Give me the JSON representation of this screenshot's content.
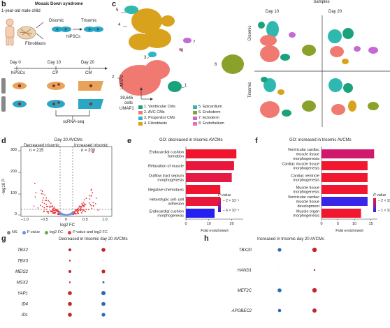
{
  "panels": {
    "b": "b",
    "c": "c",
    "d": "d",
    "e": "e",
    "f": "f",
    "g": "g",
    "h": "h"
  },
  "b": {
    "title": "Mosaic Down syndrome",
    "subject": "1-year-old male child",
    "fibroblasts": "Fibroblasts",
    "disomic": "Disomic",
    "trisomic": "Trisomic",
    "hipscs_top": "hiPSCs",
    "days": [
      "Day 0",
      "Day 10",
      "Day 20"
    ],
    "hipscs_bottom": "hiPSCs",
    "cp": "CP",
    "cm": "CM",
    "scrnaseq": "scRNA-seq"
  },
  "c": {
    "cluster_numbers": [
      "1",
      "2",
      "3",
      "4",
      "5",
      "6",
      "7",
      "8"
    ],
    "cells_count": "39,645",
    "cells_word": "cells",
    "umap2": "UMAP2",
    "umap1": "UMAP1",
    "legend": [
      {
        "label": "1. Ventricular CMs",
        "color": "#1aa37a"
      },
      {
        "label": "2. AVC CMs",
        "color": "#f07a72"
      },
      {
        "label": "3. Progenitor CMs",
        "color": "#2db5c8"
      },
      {
        "label": "4. Fibroblasts",
        "color": "#d9a21c"
      },
      {
        "label": "5. Epicardium",
        "color": "#2fb8b0"
      },
      {
        "label": "6. Endoderm",
        "color": "#8aa12a"
      },
      {
        "label": "7. Ectoderm",
        "color": "#c46ad6"
      },
      {
        "label": "8. Endothelium",
        "color": "#e86fb0"
      }
    ],
    "samples_title": "Samples",
    "col_labels": [
      "Day 10",
      "Day 20"
    ],
    "row_labels": [
      "Disomic",
      "Trisomic"
    ]
  },
  "d": {
    "title": "Day 20 AVCMs",
    "left_label": "Decreased trisomic",
    "left_n": "n = 215",
    "right_label": "Increased trisomic",
    "right_n": "n = 200",
    "ylabel": "−log10 P",
    "xlabel": "log2 FC",
    "yticks": [
      "300",
      "200",
      "100",
      "0"
    ],
    "xticks": [
      "−1.0",
      "−0.5",
      "0",
      "0.5",
      "1.0"
    ],
    "legend": [
      {
        "label": "NS",
        "color": "#888888"
      },
      {
        "label": "P value",
        "color": "#6f8fe0"
      },
      {
        "label": "log2 FC",
        "color": "#5fb04c"
      },
      {
        "label": "P value and log2 FC",
        "color": "#e8393d"
      }
    ]
  },
  "chart_data": [
    {
      "type": "bar",
      "title": "GO: decreased in trisomic AVCMs",
      "categories": [
        "Endocardial cushion formation",
        "Relaxation of muscle",
        "Outflow tract septum morphogenesis",
        "Negative chemotaxis",
        "Heterotypic cell–cell adhesion",
        "Endocardial cushion morphogenesis"
      ],
      "values": [
        22,
        21,
        20,
        15,
        15,
        12.5
      ],
      "colors": [
        "#f0142e",
        "#e9173c",
        "#e51a44",
        "#f0142e",
        "#e9173c",
        "#2520f0"
      ],
      "xlabel": "Fold enrichment",
      "xlim": [
        0,
        25
      ],
      "xticks": [
        "0",
        "10",
        "20"
      ],
      "legend_title": "P value",
      "legend_ticks": [
        "2 × 10⁻³",
        "6 × 10⁻³"
      ]
    },
    {
      "type": "bar",
      "title": "GO: increased in trisomic AVCMs",
      "categories": [
        "Ventricular cardiac muscle tissue morphogenesis",
        "Cardiac muscle tissue morphogenesis",
        "Cardiac ventricle morphogenesis",
        "Muscle tissue morphogenesis",
        "Ventricular cardiac muscle tissue development",
        "Muscle organ morphogenesis"
      ],
      "values": [
        16,
        14,
        14,
        14,
        14,
        12
      ],
      "colors": [
        "#d0186c",
        "#f0172e",
        "#f0172e",
        "#f0172e",
        "#3a26e8",
        "#f0172e"
      ],
      "xlabel": "Fold enrichment",
      "xlim": [
        0,
        17
      ],
      "xticks": [
        "0",
        "5",
        "10",
        "15"
      ],
      "legend_title": "P value",
      "legend_ticks": [
        "2 × 10⁻⁴",
        "1 × 10⁻³"
      ]
    },
    {
      "type": "scatter",
      "title": "Decreased in trisomic day 20 AVCMs",
      "categories": [
        "TBX2",
        "TBX3",
        "MEIS2",
        "MSX2",
        "YAP1",
        "ID4",
        "ID1"
      ],
      "series": [
        {
          "values": [
            2,
            1.2,
            2,
            1.2,
            2.8,
            2.8,
            2.8
          ],
          "color": "#c0272d"
        },
        {
          "values": [
            2.8,
            0.4,
            2.6,
            1.5,
            3,
            2.8,
            2.6
          ],
          "color": "#c0272d",
          "alt_color": "#2c67b1"
        }
      ]
    },
    {
      "type": "scatter",
      "title": "Increased in trisomic day 20 AVCMs",
      "categories": [
        "TBX20",
        "HAND1",
        "MEF2C",
        "APOBEC2"
      ],
      "series": [
        {
          "values": [
            2.6,
            0.3,
            2.8,
            2.3
          ],
          "color": "#2c67b1"
        },
        {
          "values": [
            3.2,
            1.2,
            3.2,
            3
          ],
          "color": "#c0272d"
        }
      ]
    }
  ]
}
